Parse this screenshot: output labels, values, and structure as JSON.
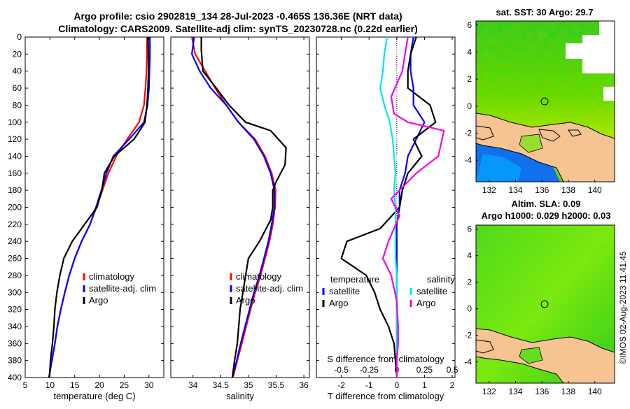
{
  "header": {
    "line1": "Argo profile: csio 2902819_134 28-Jul-2023 -0.465S 136.36E (NRT data)",
    "line2": "Climatology: CARS2009. Satellite-adj clim: synTS_20230728.nc (0.22d earlier)"
  },
  "colors": {
    "climatology": "#ff0000",
    "satellite": "#0000ff",
    "argo": "#000000",
    "sal_satellite": "#00e5ee",
    "sal_argo": "#ee00ee",
    "land": "#f6c392"
  },
  "depth_axis": {
    "ticks": [
      0,
      20,
      40,
      60,
      80,
      100,
      120,
      140,
      160,
      180,
      200,
      220,
      240,
      260,
      280,
      300,
      320,
      340,
      360,
      380,
      400
    ],
    "tick_labels": [
      "0",
      "20",
      "40",
      "60",
      "80",
      "100",
      "120",
      "140",
      "160",
      "180",
      "200",
      "220",
      "240",
      "260",
      "280",
      "300",
      "320",
      "340",
      "360",
      "380",
      "400"
    ],
    "range": [
      0,
      400
    ]
  },
  "legend_common": {
    "climatology": "climatology",
    "satellite_clim": "satellite-adj. clim",
    "argo": "Argo"
  },
  "legend_diff": {
    "temperature": "temperature",
    "salinity": "salinity",
    "satellite": "satellite",
    "argo": "Argo"
  },
  "chart_data": [
    {
      "type": "line",
      "name": "temperature-profile",
      "xlabel": "temperature (deg C)",
      "ylabel": "",
      "xlim": [
        5,
        33
      ],
      "ylim": [
        400,
        0
      ],
      "xticks": [
        5,
        10,
        15,
        20,
        25,
        30
      ],
      "xtick_labels": [
        "5",
        "10",
        "15",
        "20",
        "25",
        "30"
      ],
      "series": [
        {
          "name": "climatology",
          "color": "#ff0000",
          "points": [
            [
              29.6,
              0
            ],
            [
              29.6,
              20
            ],
            [
              29.5,
              40
            ],
            [
              29.3,
              60
            ],
            [
              29.0,
              80
            ],
            [
              28.0,
              100
            ],
            [
              25.6,
              120
            ],
            [
              23.4,
              140
            ],
            [
              21.8,
              160
            ],
            [
              20.6,
              180
            ],
            [
              19.4,
              200
            ],
            [
              18.1,
              220
            ],
            [
              16.4,
              240
            ],
            [
              15.0,
              260
            ],
            [
              13.9,
              280
            ],
            [
              13.0,
              300
            ],
            [
              12.2,
              320
            ],
            [
              11.5,
              340
            ],
            [
              11.0,
              360
            ],
            [
              10.4,
              380
            ],
            [
              9.8,
              400
            ]
          ]
        },
        {
          "name": "satellite-adj. clim",
          "color": "#0000ff",
          "points": [
            [
              30.2,
              0
            ],
            [
              30.2,
              20
            ],
            [
              30.1,
              40
            ],
            [
              30.0,
              60
            ],
            [
              29.7,
              80
            ],
            [
              29.0,
              100
            ],
            [
              26.0,
              120
            ],
            [
              22.8,
              140
            ],
            [
              21.4,
              160
            ],
            [
              20.4,
              180
            ],
            [
              19.3,
              200
            ],
            [
              18.1,
              220
            ],
            [
              16.4,
              240
            ],
            [
              15.0,
              260
            ],
            [
              13.9,
              280
            ],
            [
              13.0,
              300
            ],
            [
              12.2,
              320
            ],
            [
              11.5,
              340
            ],
            [
              11.0,
              360
            ],
            [
              10.4,
              380
            ],
            [
              9.8,
              400
            ]
          ]
        },
        {
          "name": "Argo",
          "color": "#000000",
          "points": [
            [
              29.8,
              0
            ],
            [
              29.9,
              20
            ],
            [
              29.9,
              40
            ],
            [
              29.8,
              60
            ],
            [
              29.6,
              80
            ],
            [
              29.2,
              100
            ],
            [
              27.0,
              120
            ],
            [
              23.0,
              140
            ],
            [
              21.0,
              160
            ],
            [
              20.5,
              180
            ],
            [
              19.5,
              200
            ],
            [
              17.0,
              220
            ],
            [
              14.5,
              240
            ],
            [
              12.8,
              260
            ],
            [
              12.0,
              280
            ],
            [
              11.4,
              300
            ],
            [
              11.0,
              320
            ],
            [
              10.8,
              340
            ],
            [
              10.5,
              360
            ],
            [
              10.1,
              380
            ],
            [
              9.9,
              400
            ]
          ]
        }
      ]
    },
    {
      "type": "line",
      "name": "salinity-profile",
      "xlabel": "salinity",
      "ylabel": "",
      "xlim": [
        33.6,
        36.1
      ],
      "ylim": [
        400,
        0
      ],
      "xticks": [
        34,
        34.5,
        35,
        35.5,
        36
      ],
      "xtick_labels": [
        "34",
        "34.5",
        "35",
        "35.5",
        "36"
      ],
      "series": [
        {
          "name": "climatology",
          "color": "#ff0000",
          "points": [
            [
              33.98,
              0
            ],
            [
              34.04,
              20
            ],
            [
              34.22,
              40
            ],
            [
              34.4,
              60
            ],
            [
              34.6,
              80
            ],
            [
              34.82,
              100
            ],
            [
              35.12,
              120
            ],
            [
              35.3,
              140
            ],
            [
              35.42,
              160
            ],
            [
              35.49,
              180
            ],
            [
              35.48,
              200
            ],
            [
              35.44,
              220
            ],
            [
              35.38,
              240
            ],
            [
              35.3,
              260
            ],
            [
              35.22,
              280
            ],
            [
              35.12,
              300
            ],
            [
              35.04,
              320
            ],
            [
              34.96,
              340
            ],
            [
              34.88,
              360
            ],
            [
              34.8,
              380
            ],
            [
              34.72,
              400
            ]
          ]
        },
        {
          "name": "satellite-adj. clim",
          "color": "#0000ff",
          "points": [
            [
              34.02,
              0
            ],
            [
              33.98,
              20
            ],
            [
              34.12,
              40
            ],
            [
              34.32,
              60
            ],
            [
              34.6,
              80
            ],
            [
              34.82,
              100
            ],
            [
              35.1,
              120
            ],
            [
              35.28,
              140
            ],
            [
              35.4,
              160
            ],
            [
              35.47,
              180
            ],
            [
              35.47,
              200
            ],
            [
              35.42,
              220
            ],
            [
              35.36,
              240
            ],
            [
              35.28,
              260
            ],
            [
              35.2,
              280
            ],
            [
              35.1,
              300
            ],
            [
              35.02,
              320
            ],
            [
              34.94,
              340
            ],
            [
              34.86,
              360
            ],
            [
              34.79,
              380
            ],
            [
              34.71,
              400
            ]
          ]
        },
        {
          "name": "Argo",
          "color": "#000000",
          "points": [
            [
              34.15,
              0
            ],
            [
              34.15,
              15
            ],
            [
              34.18,
              40
            ],
            [
              34.42,
              60
            ],
            [
              34.65,
              80
            ],
            [
              34.95,
              100
            ],
            [
              35.4,
              110
            ],
            [
              35.68,
              130
            ],
            [
              35.66,
              150
            ],
            [
              35.5,
              170
            ],
            [
              35.44,
              180
            ],
            [
              35.44,
              200
            ],
            [
              35.4,
              215
            ],
            [
              35.2,
              240
            ],
            [
              35.0,
              260
            ],
            [
              34.95,
              280
            ],
            [
              34.9,
              300
            ],
            [
              34.85,
              320
            ],
            [
              34.8,
              360
            ],
            [
              34.75,
              380
            ],
            [
              34.71,
              400
            ]
          ]
        }
      ]
    },
    {
      "type": "line",
      "name": "difference-profile",
      "xlabel": "T difference from climatology",
      "ylabel": "",
      "xlim": [
        -2.9,
        2.1
      ],
      "ylim": [
        400,
        0
      ],
      "xticks": [
        -2,
        -1,
        0,
        1,
        2
      ],
      "xtick_labels": [
        "-2",
        "-1",
        "0",
        "1",
        "2"
      ],
      "secondary_label": "S difference from climatology",
      "secondary_ticks": [
        -0.5,
        -0.25,
        0,
        0.25,
        0.5
      ],
      "secondary_tick_labels": [
        "-0.5",
        "-0.25",
        "0",
        "0.25",
        "0.5"
      ],
      "series": [
        {
          "name": "temperature satellite",
          "color": "#0000ff",
          "points": [
            [
              0.6,
              0
            ],
            [
              0.5,
              20
            ],
            [
              0.5,
              40
            ],
            [
              0.6,
              60
            ],
            [
              0.6,
              80
            ],
            [
              1.0,
              100
            ],
            [
              0.7,
              120
            ],
            [
              0.4,
              140
            ],
            [
              0.3,
              160
            ],
            [
              0.1,
              180
            ],
            [
              0.1,
              200
            ],
            [
              0.0,
              220
            ],
            [
              0.0,
              240
            ],
            [
              0.0,
              260
            ],
            [
              0.0,
              280
            ],
            [
              0.0,
              300
            ],
            [
              0.0,
              320
            ],
            [
              0.0,
              340
            ],
            [
              0.0,
              360
            ],
            [
              0.0,
              380
            ],
            [
              0.0,
              400
            ]
          ]
        },
        {
          "name": "temperature Argo",
          "color": "#000000",
          "points": [
            [
              0.7,
              0
            ],
            [
              0.5,
              20
            ],
            [
              0.4,
              40
            ],
            [
              0.4,
              60
            ],
            [
              1.2,
              80
            ],
            [
              1.4,
              100
            ],
            [
              0.6,
              120
            ],
            [
              0.9,
              140
            ],
            [
              0.4,
              160
            ],
            [
              0.2,
              180
            ],
            [
              0.1,
              200
            ],
            [
              -0.6,
              225
            ],
            [
              -1.8,
              240
            ],
            [
              -2.0,
              260
            ],
            [
              -1.1,
              280
            ],
            [
              -0.8,
              300
            ],
            [
              -0.6,
              320
            ],
            [
              -0.3,
              340
            ],
            [
              -0.1,
              360
            ],
            [
              -0.05,
              380
            ],
            [
              0.0,
              400
            ]
          ]
        },
        {
          "name": "salinity satellite",
          "color": "#00e5ee",
          "points": [
            [
              -0.35,
              0
            ],
            [
              -0.45,
              20
            ],
            [
              -0.5,
              40
            ],
            [
              -0.6,
              60
            ],
            [
              -0.45,
              80
            ],
            [
              -0.25,
              100
            ],
            [
              -0.15,
              120
            ],
            [
              -0.1,
              140
            ],
            [
              -0.05,
              160
            ],
            [
              -0.1,
              180
            ],
            [
              -0.05,
              200
            ],
            [
              -0.05,
              220
            ],
            [
              -0.05,
              240
            ],
            [
              -0.05,
              260
            ],
            [
              0.0,
              280
            ],
            [
              0.0,
              300
            ],
            [
              0.0,
              320
            ],
            [
              0.0,
              340
            ],
            [
              0.0,
              360
            ],
            [
              0.0,
              380
            ],
            [
              0.0,
              400
            ]
          ]
        },
        {
          "name": "salinity Argo",
          "color": "#ee00ee",
          "points": [
            [
              0.4,
              0
            ],
            [
              0.3,
              20
            ],
            [
              0.2,
              40
            ],
            [
              -0.2,
              70
            ],
            [
              -0.1,
              90
            ],
            [
              0.4,
              100
            ],
            [
              1.7,
              110
            ],
            [
              1.5,
              140
            ],
            [
              0.7,
              160
            ],
            [
              -0.2,
              190
            ],
            [
              0.1,
              210
            ],
            [
              -0.3,
              240
            ],
            [
              -0.5,
              260
            ],
            [
              -0.2,
              280
            ],
            [
              0.0,
              310
            ],
            [
              0.05,
              340
            ],
            [
              0.05,
              360
            ],
            [
              0.0,
              380
            ],
            [
              0.0,
              400
            ]
          ]
        }
      ]
    },
    {
      "type": "heatmap",
      "name": "sst-map",
      "title": "sat. SST: 30 Argo: 29.7",
      "xticks": [
        132,
        134,
        136,
        138,
        140
      ],
      "xtick_labels": [
        "132",
        "134",
        "136",
        "138",
        "140"
      ],
      "yticks": [
        6,
        4,
        2,
        0,
        -2,
        -4
      ],
      "ytick_labels": [
        "6",
        "4",
        "2",
        "0",
        "-2",
        "-4"
      ],
      "xlim": [
        131,
        141.5
      ],
      "ylim": [
        -5.6,
        6.3
      ],
      "argo_position": [
        136.36,
        -0.465
      ]
    },
    {
      "type": "heatmap",
      "name": "sla-map",
      "title_line1": "Altim. SLA: 0.09",
      "title_line2": "Argo h1000: 0.029 h2000: 0.03",
      "xticks": [
        132,
        134,
        136,
        138,
        140
      ],
      "xtick_labels": [
        "132",
        "134",
        "136",
        "138",
        "140"
      ],
      "yticks": [
        6,
        4,
        2,
        0,
        -2,
        -4
      ],
      "ytick_labels": [
        "6",
        "4",
        "2",
        "0",
        "-2",
        "-4"
      ],
      "xlim": [
        131,
        141.5
      ],
      "ylim": [
        -5.6,
        6.3
      ],
      "argo_position": [
        136.36,
        -0.465
      ]
    }
  ],
  "timestamp": "©IMOS 02-Aug-2023 11:41:45"
}
